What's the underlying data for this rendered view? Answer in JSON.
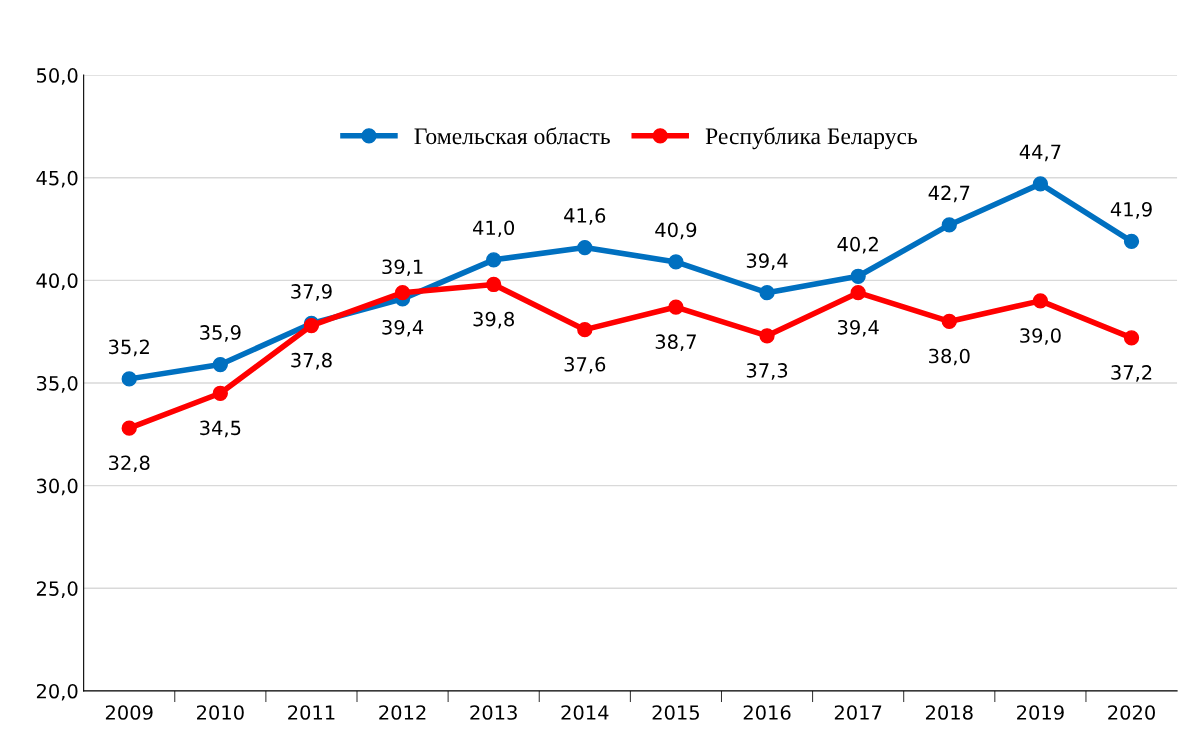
{
  "chart_data": {
    "type": "line",
    "categories": [
      "2009",
      "2010",
      "2011",
      "2012",
      "2013",
      "2014",
      "2015",
      "2016",
      "2017",
      "2018",
      "2019",
      "2020"
    ],
    "series": [
      {
        "name": "Гомельская область",
        "color": "#0070c0",
        "values": [
          35.2,
          35.9,
          37.9,
          39.1,
          41.0,
          41.6,
          40.9,
          39.4,
          40.2,
          42.7,
          44.7,
          41.9
        ],
        "value_labels": [
          "35,2",
          "35,9",
          "37,9",
          "39,1",
          "41,0",
          "41,6",
          "40,9",
          "39,4",
          "40,2",
          "42,7",
          "44,7",
          "41,9"
        ]
      },
      {
        "name": "Республика Беларусь",
        "color": "#ff0000",
        "values": [
          32.8,
          34.5,
          37.8,
          39.4,
          39.8,
          37.6,
          38.7,
          37.3,
          39.4,
          38.0,
          39.0,
          37.2
        ],
        "value_labels": [
          "32,8",
          "34,5",
          "37,8",
          "39,4",
          "39,8",
          "37,6",
          "38,7",
          "37,3",
          "39,4",
          "38,0",
          "39,0",
          "37,2"
        ]
      }
    ],
    "ylim": [
      20,
      50
    ],
    "yticks": [
      {
        "value": 20,
        "label": "20,0"
      },
      {
        "value": 25,
        "label": "25,0"
      },
      {
        "value": 30,
        "label": "30,0"
      },
      {
        "value": 35,
        "label": "35,0"
      },
      {
        "value": 40,
        "label": "40,0"
      },
      {
        "value": 45,
        "label": "45,0"
      },
      {
        "value": 50,
        "label": "50,0"
      }
    ],
    "grid": "y",
    "legend": "top",
    "marker": "circle",
    "line_style": "solid"
  }
}
